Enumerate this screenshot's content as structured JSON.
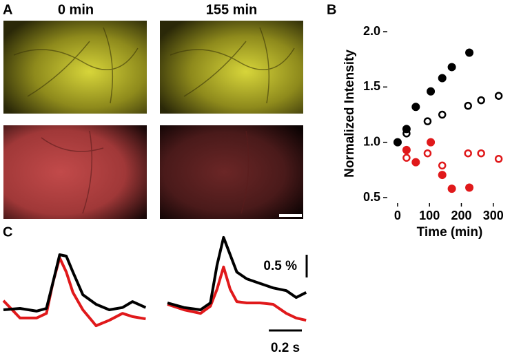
{
  "panel_labels": [
    "A",
    "B",
    "C"
  ],
  "image_labels": [
    "0 min",
    "155 min"
  ],
  "chart_data": [
    {
      "type": "scatter",
      "xlabel": "Time (min)",
      "ylabel": "Normalized Intensity",
      "xlim": [
        -15,
        320
      ],
      "ylim": [
        0.5,
        2.05
      ],
      "xticks": [
        0,
        100,
        200,
        300
      ],
      "yticks": [
        {
          "value": 0.5,
          "label": "0.5"
        },
        {
          "value": 1,
          "label": "1.0"
        },
        {
          "value": 1.5,
          "label": "1.5"
        },
        {
          "value": 2,
          "label": "2.0"
        }
      ],
      "series": [
        {
          "color": "#000000",
          "marker": "filled",
          "x": [
            0,
            28,
            57,
            104,
            140,
            170,
            225
          ],
          "values": [
            1.0,
            1.12,
            1.32,
            1.46,
            1.58,
            1.68,
            1.81
          ]
        },
        {
          "color": "#000000",
          "marker": "open",
          "x": [
            28,
            94,
            140,
            221,
            262,
            317
          ],
          "values": [
            1.08,
            1.19,
            1.25,
            1.33,
            1.38,
            1.42
          ]
        },
        {
          "color": "#e0191b",
          "marker": "filled",
          "x": [
            28,
            57,
            104,
            140,
            170,
            225
          ],
          "values": [
            0.93,
            0.82,
            1.0,
            0.705,
            0.58,
            0.59
          ]
        },
        {
          "color": "#e0191b",
          "marker": "open",
          "x": [
            28,
            94,
            140,
            221,
            262,
            317
          ],
          "values": [
            0.86,
            0.9,
            0.79,
            0.9,
            0.9,
            0.85
          ]
        }
      ]
    },
    {
      "type": "line",
      "xlim": [
        0,
        0.86
      ],
      "ylim": [
        -0.5,
        1.8
      ],
      "x": [
        0,
        0.1,
        0.2,
        0.26,
        0.3,
        0.34,
        0.38,
        0.42,
        0.48,
        0.56,
        0.64,
        0.72,
        0.78,
        0.86
      ],
      "series": [
        {
          "color": "#e0191b",
          "values": [
            0.2,
            -0.18,
            -0.18,
            -0.08,
            0.61,
            1.14,
            0.83,
            0.38,
            0,
            -0.35,
            -0.23,
            -0.08,
            -0.15,
            -0.2
          ]
        },
        {
          "color": "#000000",
          "values": [
            0,
            0.03,
            -0.03,
            0.03,
            0.61,
            1.21,
            1.18,
            0.83,
            0.33,
            0.12,
            0,
            0.05,
            0.18,
            0.05
          ]
        }
      ]
    },
    {
      "type": "line",
      "xlim": [
        0,
        0.86
      ],
      "ylim": [
        -0.5,
        1.8
      ],
      "x": [
        0,
        0.1,
        0.2,
        0.26,
        0.3,
        0.34,
        0.38,
        0.42,
        0.48,
        0.56,
        0.64,
        0.72,
        0.78,
        0.84
      ],
      "series": [
        {
          "color": "#e0191b",
          "values": [
            0.12,
            0,
            -0.08,
            0.08,
            0.45,
            0.94,
            0.45,
            0.18,
            0.15,
            0.15,
            0.12,
            -0.08,
            -0.18,
            -0.23
          ]
        },
        {
          "color": "#000000",
          "values": [
            0.15,
            0.05,
            0,
            0.15,
            0.98,
            1.59,
            1.21,
            0.83,
            0.68,
            0.58,
            0.48,
            0.42,
            0.27,
            0.38
          ]
        }
      ],
      "scale_bars": {
        "y": {
          "value": 0.5,
          "label": "0.5 %"
        },
        "x": {
          "value": 0.2,
          "label": "0.2 s"
        }
      }
    }
  ]
}
